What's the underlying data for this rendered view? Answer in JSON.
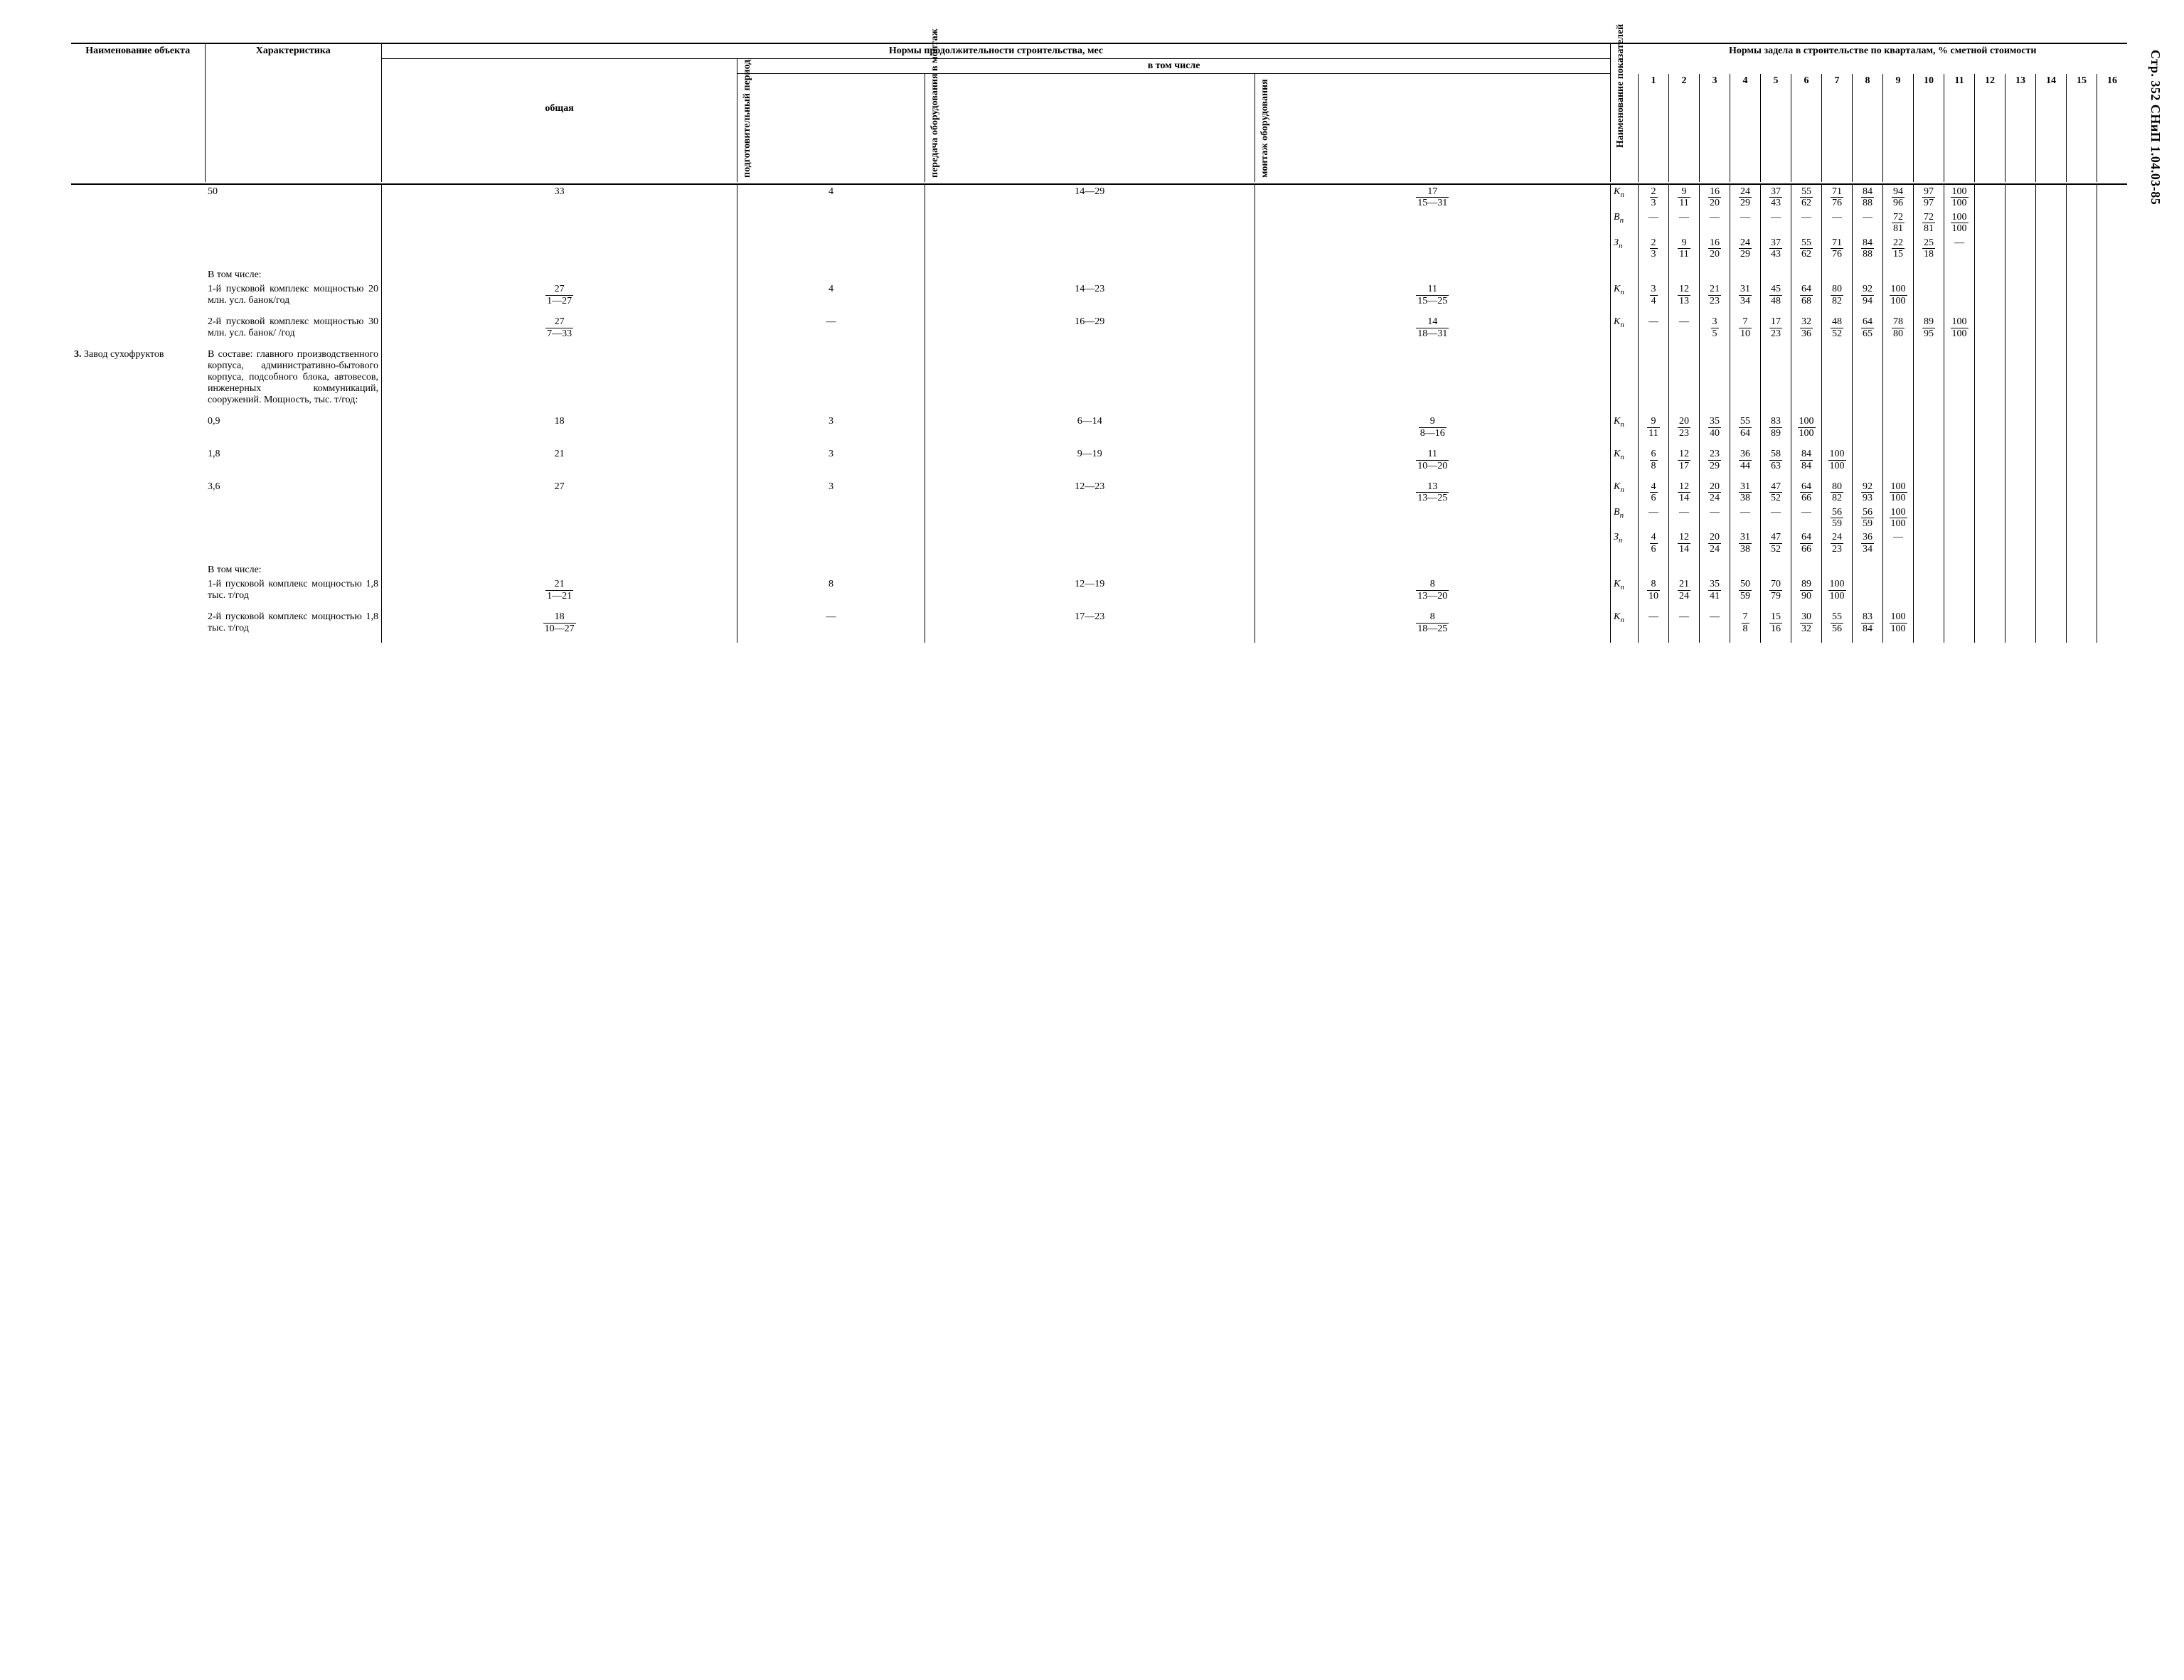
{
  "page_side_label": "Стр. 352 СНиП 1.04.03-85",
  "header": {
    "col_name": "Наименование объекта",
    "col_char": "Характеристика",
    "dur_group": "Нормы продолжительности строительства, мес",
    "dur_sub": "в том числе",
    "dur_total": "общая",
    "dur_prep": "подготовительный период",
    "dur_transfer": "передача оборудования в монтаж",
    "dur_mount": "монтаж оборудования",
    "col_ind": "Наименование показателей",
    "q_group": "Нормы задела в строительстве по кварталам, % сметной стоимости",
    "q_labels": [
      "1",
      "2",
      "3",
      "4",
      "5",
      "6",
      "7",
      "8",
      "9",
      "10",
      "11",
      "12",
      "13",
      "14",
      "15",
      "16"
    ]
  },
  "ind_labels": {
    "K": "K",
    "B": "B",
    "Z": "З",
    "sub": "п"
  },
  "item3_number": "3.",
  "item3_name": "Завод сухофруктов",
  "rows": [
    {
      "char": "50",
      "total": "33",
      "prep": "4",
      "transfer": "14—29",
      "mount_n": "17",
      "mount_d": "15—31",
      "series": [
        {
          "ind": "K",
          "vals": [
            [
              "2",
              "3"
            ],
            [
              "9",
              "11"
            ],
            [
              "16",
              "20"
            ],
            [
              "24",
              "29"
            ],
            [
              "37",
              "43"
            ],
            [
              "55",
              "62"
            ],
            [
              "71",
              "76"
            ],
            [
              "84",
              "88"
            ],
            [
              "94",
              "96"
            ],
            [
              "97",
              "97"
            ],
            [
              "100",
              "100"
            ],
            null,
            null,
            null,
            null,
            null
          ]
        },
        {
          "ind": "B",
          "vals": [
            [
              "—",
              ""
            ],
            [
              "—",
              ""
            ],
            [
              "—",
              ""
            ],
            [
              "—",
              ""
            ],
            [
              "—",
              ""
            ],
            [
              "—",
              ""
            ],
            [
              "—",
              ""
            ],
            [
              "—",
              ""
            ],
            [
              "72",
              "81"
            ],
            [
              "72",
              "81"
            ],
            [
              "100",
              "100"
            ],
            null,
            null,
            null,
            null,
            null
          ]
        },
        {
          "ind": "Z",
          "vals": [
            [
              "2",
              "3"
            ],
            [
              "9",
              "11"
            ],
            [
              "16",
              "20"
            ],
            [
              "24",
              "29"
            ],
            [
              "37",
              "43"
            ],
            [
              "55",
              "62"
            ],
            [
              "71",
              "76"
            ],
            [
              "84",
              "88"
            ],
            [
              "22",
              "15"
            ],
            [
              "25",
              "18"
            ],
            [
              "—",
              ""
            ],
            null,
            null,
            null,
            null,
            null
          ]
        }
      ]
    },
    {
      "pre_char": "В том числе:",
      "char": "1-й пусковой комплекс мощностью 20 млн. усл. банок/год",
      "total_n": "27",
      "total_d": "1—27",
      "prep": "4",
      "transfer": "14—23",
      "mount_n": "11",
      "mount_d": "15—25",
      "series": [
        {
          "ind": "K",
          "vals": [
            [
              "3",
              "4"
            ],
            [
              "12",
              "13"
            ],
            [
              "21",
              "23"
            ],
            [
              "31",
              "34"
            ],
            [
              "45",
              "48"
            ],
            [
              "64",
              "68"
            ],
            [
              "80",
              "82"
            ],
            [
              "92",
              "94"
            ],
            [
              "100",
              "100"
            ],
            null,
            null,
            null,
            null,
            null,
            null,
            null
          ]
        }
      ]
    },
    {
      "char": "2-й пусковой комплекс мощностью 30 млн. усл. банок/ /год",
      "total_n": "27",
      "total_d": "7—33",
      "prep": "—",
      "transfer": "16—29",
      "mount_n": "14",
      "mount_d": "18—31",
      "series": [
        {
          "ind": "K",
          "vals": [
            [
              "—",
              ""
            ],
            [
              "—",
              ""
            ],
            [
              "3",
              "5"
            ],
            [
              "7",
              "10"
            ],
            [
              "17",
              "23"
            ],
            [
              "32",
              "36"
            ],
            [
              "48",
              "52"
            ],
            [
              "64",
              "65"
            ],
            [
              "78",
              "80"
            ],
            [
              "89",
              "95"
            ],
            [
              "100",
              "100"
            ],
            null,
            null,
            null,
            null,
            null
          ]
        }
      ]
    },
    {
      "name_number": "3.",
      "name": "Завод сухофруктов",
      "char": "В составе: главного производственного корпуса, административно-бытового корпуса, подсобного блока, автовесов, инженерных коммуникаций, сооружений. Мощность, тыс. т/год:",
      "series": []
    },
    {
      "char": "0,9",
      "total": "18",
      "prep": "3",
      "transfer": "6—14",
      "mount_n": "9",
      "mount_d": "8—16",
      "series": [
        {
          "ind": "K",
          "vals": [
            [
              "9",
              "11"
            ],
            [
              "20",
              "23"
            ],
            [
              "35",
              "40"
            ],
            [
              "55",
              "64"
            ],
            [
              "83",
              "89"
            ],
            [
              "100",
              "100"
            ],
            null,
            null,
            null,
            null,
            null,
            null,
            null,
            null,
            null,
            null
          ]
        }
      ]
    },
    {
      "char": "1,8",
      "total": "21",
      "prep": "3",
      "transfer": "9—19",
      "mount_n": "11",
      "mount_d": "10—20",
      "series": [
        {
          "ind": "K",
          "vals": [
            [
              "6",
              "8"
            ],
            [
              "12",
              "17"
            ],
            [
              "23",
              "29"
            ],
            [
              "36",
              "44"
            ],
            [
              "58",
              "63"
            ],
            [
              "84",
              "84"
            ],
            [
              "100",
              "100"
            ],
            null,
            null,
            null,
            null,
            null,
            null,
            null,
            null,
            null
          ]
        }
      ]
    },
    {
      "char": "3,6",
      "total": "27",
      "prep": "3",
      "transfer": "12—23",
      "mount_n": "13",
      "mount_d": "13—25",
      "series": [
        {
          "ind": "K",
          "vals": [
            [
              "4",
              "6"
            ],
            [
              "12",
              "14"
            ],
            [
              "20",
              "24"
            ],
            [
              "31",
              "38"
            ],
            [
              "47",
              "52"
            ],
            [
              "64",
              "66"
            ],
            [
              "80",
              "82"
            ],
            [
              "92",
              "93"
            ],
            [
              "100",
              "100"
            ],
            null,
            null,
            null,
            null,
            null,
            null,
            null
          ]
        },
        {
          "ind": "B",
          "vals": [
            [
              "—",
              ""
            ],
            [
              "—",
              ""
            ],
            [
              "—",
              ""
            ],
            [
              "—",
              ""
            ],
            [
              "—",
              ""
            ],
            [
              "—",
              ""
            ],
            [
              "56",
              "59"
            ],
            [
              "56",
              "59"
            ],
            [
              "100",
              "100"
            ],
            null,
            null,
            null,
            null,
            null,
            null,
            null
          ]
        },
        {
          "ind": "Z",
          "vals": [
            [
              "4",
              "6"
            ],
            [
              "12",
              "14"
            ],
            [
              "20",
              "24"
            ],
            [
              "31",
              "38"
            ],
            [
              "47",
              "52"
            ],
            [
              "64",
              "66"
            ],
            [
              "24",
              "23"
            ],
            [
              "36",
              "34"
            ],
            [
              "—",
              ""
            ],
            null,
            null,
            null,
            null,
            null,
            null,
            null
          ]
        }
      ]
    },
    {
      "pre_char": "В том числе:",
      "char": "1-й пусковой комплекс мощностью 1,8 тыс. т/год",
      "total_n": "21",
      "total_d": "1—21",
      "prep": "8",
      "transfer": "12—19",
      "mount_n": "8",
      "mount_d": "13—20",
      "series": [
        {
          "ind": "K",
          "vals": [
            [
              "8",
              "10"
            ],
            [
              "21",
              "24"
            ],
            [
              "35",
              "41"
            ],
            [
              "50",
              "59"
            ],
            [
              "70",
              "79"
            ],
            [
              "89",
              "90"
            ],
            [
              "100",
              "100"
            ],
            null,
            null,
            null,
            null,
            null,
            null,
            null,
            null,
            null
          ]
        }
      ]
    },
    {
      "char": "2-й пусковой комплекс мощностью 1,8 тыс. т/год",
      "total_n": "18",
      "total_d": "10—27",
      "prep": "—",
      "transfer": "17—23",
      "mount_n": "8",
      "mount_d": "18—25",
      "series": [
        {
          "ind": "K",
          "vals": [
            [
              "—",
              ""
            ],
            [
              "—",
              ""
            ],
            [
              "—",
              ""
            ],
            [
              "7",
              "8"
            ],
            [
              "15",
              "16"
            ],
            [
              "30",
              "32"
            ],
            [
              "55",
              "56"
            ],
            [
              "83",
              "84"
            ],
            [
              "100",
              "100"
            ],
            null,
            null,
            null,
            null,
            null,
            null,
            null
          ]
        }
      ]
    }
  ],
  "style": {
    "font_family": "Times New Roman, serif",
    "font_size_body": 14,
    "font_size_side": 18,
    "border_color": "#000000",
    "background": "#ffffff"
  }
}
